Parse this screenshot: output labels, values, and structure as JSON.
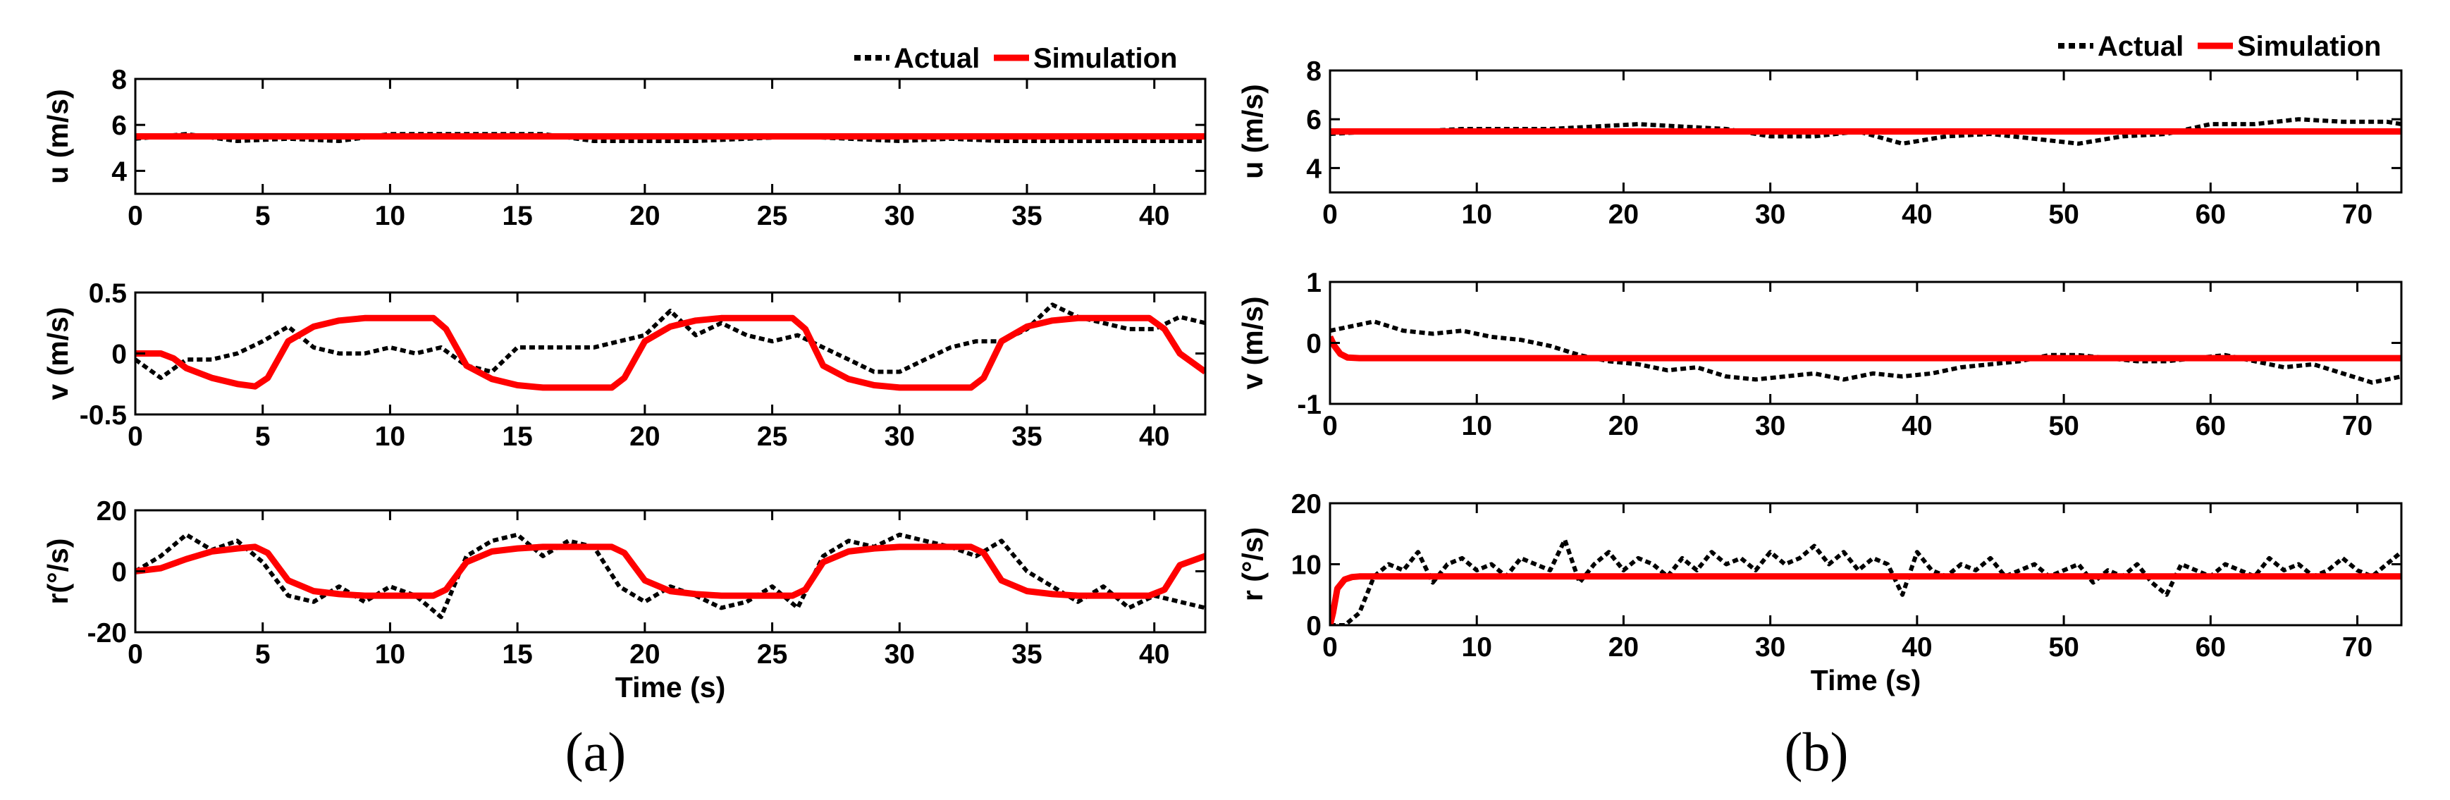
{
  "colors": {
    "actual": "#000000",
    "simulation": "#ff0000"
  },
  "legend": {
    "actual": "Actual",
    "simulation": "Simulation"
  },
  "panel_labels": [
    "(a)",
    "(b)"
  ],
  "chart_data": [
    {
      "type": "line",
      "panel": "a",
      "title": "",
      "xlabel": "",
      "ylabel": "u (m/s)",
      "xlim": [
        0,
        42
      ],
      "ylim": [
        3,
        8
      ],
      "xticks": [
        0,
        5,
        10,
        15,
        20,
        25,
        30,
        35,
        40
      ],
      "yticks": [
        4,
        6,
        8
      ],
      "series": [
        {
          "name": "Actual",
          "style": "dotted",
          "x": [
            0,
            2,
            4,
            6,
            8,
            10,
            12,
            14,
            16,
            18,
            20,
            22,
            24,
            26,
            28,
            30,
            32,
            34,
            36,
            38,
            40,
            42
          ],
          "y": [
            5.4,
            5.6,
            5.3,
            5.4,
            5.3,
            5.6,
            5.6,
            5.6,
            5.6,
            5.3,
            5.3,
            5.3,
            5.4,
            5.5,
            5.4,
            5.3,
            5.4,
            5.3,
            5.3,
            5.3,
            5.3,
            5.3
          ]
        },
        {
          "name": "Simulation",
          "style": "solid",
          "x": [
            0,
            42
          ],
          "y": [
            5.5,
            5.5
          ]
        }
      ]
    },
    {
      "type": "line",
      "panel": "a",
      "title": "",
      "xlabel": "",
      "ylabel": "v (m/s)",
      "xlim": [
        0,
        42
      ],
      "ylim": [
        -0.5,
        0.5
      ],
      "xticks": [
        0,
        5,
        10,
        15,
        20,
        25,
        30,
        35,
        40
      ],
      "yticks": [
        -0.5,
        0,
        0.5
      ],
      "series": [
        {
          "name": "Actual",
          "style": "dotted",
          "x": [
            0,
            1,
            2,
            3,
            4,
            5,
            6,
            7,
            8,
            9,
            10,
            11,
            12,
            13,
            14,
            15,
            16,
            17,
            18,
            19,
            20,
            21,
            22,
            23,
            24,
            25,
            26,
            27,
            28,
            29,
            30,
            31,
            32,
            33,
            34,
            35,
            36,
            37,
            38,
            39,
            40,
            41,
            42
          ],
          "y": [
            -0.05,
            -0.2,
            -0.05,
            -0.05,
            0.0,
            0.1,
            0.22,
            0.05,
            0.0,
            0.0,
            0.05,
            0.0,
            0.05,
            -0.1,
            -0.15,
            0.05,
            0.05,
            0.05,
            0.05,
            0.1,
            0.15,
            0.35,
            0.15,
            0.25,
            0.15,
            0.1,
            0.15,
            0.05,
            -0.05,
            -0.15,
            -0.15,
            -0.05,
            0.05,
            0.1,
            0.1,
            0.2,
            0.4,
            0.3,
            0.25,
            0.2,
            0.2,
            0.3,
            0.25
          ]
        },
        {
          "name": "Simulation",
          "style": "solid",
          "x": [
            0,
            1,
            1.5,
            2,
            3,
            4,
            4.7,
            5.2,
            6,
            7,
            8,
            9,
            10,
            11.7,
            12.2,
            13,
            14,
            15,
            16,
            18.7,
            19.2,
            20,
            21,
            22,
            23,
            24,
            25.8,
            26.3,
            27,
            28,
            29,
            30,
            32.8,
            33.3,
            34,
            35,
            36,
            37,
            39.8,
            40.4,
            41,
            42
          ],
          "y": [
            0,
            0,
            -0.04,
            -0.12,
            -0.2,
            -0.25,
            -0.27,
            -0.2,
            0.1,
            0.22,
            0.27,
            0.29,
            0.29,
            0.29,
            0.2,
            -0.1,
            -0.21,
            -0.26,
            -0.28,
            -0.28,
            -0.2,
            0.1,
            0.22,
            0.27,
            0.29,
            0.29,
            0.29,
            0.2,
            -0.1,
            -0.21,
            -0.26,
            -0.28,
            -0.28,
            -0.2,
            0.1,
            0.22,
            0.27,
            0.29,
            0.29,
            0.2,
            0.0,
            -0.15
          ]
        }
      ]
    },
    {
      "type": "line",
      "panel": "a",
      "title": "",
      "xlabel": "Time (s)",
      "ylabel": "r(°/s)",
      "xlim": [
        0,
        42
      ],
      "ylim": [
        -20,
        20
      ],
      "xticks": [
        0,
        5,
        10,
        15,
        20,
        25,
        30,
        35,
        40
      ],
      "yticks": [
        -20,
        0,
        20
      ],
      "series": [
        {
          "name": "Actual",
          "style": "dotted",
          "x": [
            0,
            1,
            2,
            3,
            4,
            5,
            6,
            7,
            8,
            9,
            10,
            11,
            12,
            13,
            14,
            15,
            16,
            17,
            18,
            19,
            20,
            21,
            22,
            23,
            24,
            25,
            26,
            27,
            28,
            29,
            30,
            31,
            32,
            33,
            34,
            35,
            36,
            37,
            38,
            39,
            40,
            41,
            42
          ],
          "y": [
            0,
            5,
            12,
            7,
            10,
            3,
            -8,
            -10,
            -5,
            -10,
            -5,
            -8,
            -15,
            5,
            10,
            12,
            5,
            10,
            8,
            -5,
            -10,
            -5,
            -8,
            -12,
            -10,
            -5,
            -12,
            5,
            10,
            8,
            12,
            10,
            8,
            5,
            10,
            0,
            -5,
            -10,
            -5,
            -12,
            -8,
            -10,
            -12
          ]
        },
        {
          "name": "Simulation",
          "style": "solid",
          "x": [
            0,
            1,
            2,
            3,
            4,
            4.7,
            5.2,
            6,
            7,
            8,
            9,
            10,
            11.7,
            12.2,
            13,
            14,
            15,
            16,
            18.7,
            19.2,
            20,
            21,
            22,
            23,
            24,
            25.8,
            26.3,
            27,
            28,
            29,
            30,
            32.8,
            33.3,
            34,
            35,
            36,
            37,
            39.8,
            40.4,
            41,
            42
          ],
          "y": [
            0,
            1,
            4,
            6.5,
            7.5,
            8,
            6,
            -3,
            -6.5,
            -7.5,
            -8,
            -8,
            -8,
            -6,
            3,
            6.5,
            7.5,
            8,
            8,
            6,
            -3,
            -6.5,
            -7.5,
            -8,
            -8,
            -8,
            -6,
            3,
            6.5,
            7.5,
            8,
            8,
            6,
            -3,
            -6.5,
            -7.5,
            -8,
            -8,
            -6,
            2,
            5
          ]
        }
      ]
    },
    {
      "type": "line",
      "panel": "b",
      "title": "",
      "xlabel": "",
      "ylabel": "u (m/s)",
      "xlim": [
        0,
        73
      ],
      "ylim": [
        3,
        8
      ],
      "xticks": [
        0,
        10,
        20,
        30,
        40,
        50,
        60,
        70
      ],
      "yticks": [
        4,
        6,
        8
      ],
      "series": [
        {
          "name": "Actual",
          "style": "dotted",
          "x": [
            0,
            3,
            6,
            9,
            12,
            15,
            18,
            21,
            24,
            27,
            30,
            33,
            36,
            39,
            42,
            45,
            48,
            51,
            54,
            57,
            60,
            63,
            66,
            69,
            72,
            73
          ],
          "y": [
            5.4,
            5.5,
            5.5,
            5.6,
            5.6,
            5.6,
            5.7,
            5.8,
            5.7,
            5.6,
            5.3,
            5.3,
            5.5,
            5.0,
            5.3,
            5.4,
            5.2,
            5.0,
            5.3,
            5.4,
            5.8,
            5.8,
            6.0,
            5.9,
            5.9,
            5.8
          ]
        },
        {
          "name": "Simulation",
          "style": "solid",
          "x": [
            0,
            73
          ],
          "y": [
            5.5,
            5.5
          ]
        }
      ]
    },
    {
      "type": "line",
      "panel": "b",
      "title": "",
      "xlabel": "",
      "ylabel": "v (m/s)",
      "xlim": [
        0,
        73
      ],
      "ylim": [
        -1,
        1
      ],
      "xticks": [
        0,
        10,
        20,
        30,
        40,
        50,
        60,
        70
      ],
      "yticks": [
        -1,
        0,
        1
      ],
      "series": [
        {
          "name": "Actual",
          "style": "dotted",
          "x": [
            0,
            1,
            3,
            5,
            7,
            9,
            11,
            13,
            15,
            17,
            19,
            21,
            23,
            25,
            27,
            29,
            31,
            33,
            35,
            37,
            39,
            41,
            43,
            45,
            47,
            49,
            51,
            53,
            55,
            57,
            59,
            61,
            63,
            65,
            67,
            69,
            71,
            73
          ],
          "y": [
            0.2,
            0.25,
            0.35,
            0.2,
            0.15,
            0.2,
            0.1,
            0.05,
            -0.05,
            -0.2,
            -0.3,
            -0.35,
            -0.45,
            -0.4,
            -0.55,
            -0.6,
            -0.55,
            -0.5,
            -0.6,
            -0.5,
            -0.55,
            -0.5,
            -0.4,
            -0.35,
            -0.3,
            -0.2,
            -0.2,
            -0.25,
            -0.3,
            -0.3,
            -0.25,
            -0.2,
            -0.3,
            -0.4,
            -0.35,
            -0.5,
            -0.65,
            -0.55
          ]
        },
        {
          "name": "Simulation",
          "style": "solid",
          "x": [
            0,
            0.3,
            0.7,
            1.2,
            2,
            73
          ],
          "y": [
            0.1,
            -0.05,
            -0.18,
            -0.24,
            -0.25,
            -0.25
          ]
        }
      ]
    },
    {
      "type": "line",
      "panel": "b",
      "title": "",
      "xlabel": "Time (s)",
      "ylabel": "r (°/s)",
      "xlim": [
        0,
        73
      ],
      "ylim": [
        0,
        20
      ],
      "xticks": [
        0,
        10,
        20,
        30,
        40,
        50,
        60,
        70
      ],
      "yticks": [
        0,
        10,
        20
      ],
      "series": [
        {
          "name": "Actual",
          "style": "dotted",
          "x": [
            0,
            1,
            2,
            3,
            4,
            5,
            6,
            7,
            8,
            9,
            10,
            11,
            12,
            13,
            14,
            15,
            16,
            17,
            18,
            19,
            20,
            21,
            22,
            23,
            24,
            25,
            26,
            27,
            28,
            29,
            30,
            31,
            32,
            33,
            34,
            35,
            36,
            37,
            38,
            39,
            40,
            41,
            42,
            43,
            44,
            45,
            46,
            47,
            48,
            49,
            50,
            51,
            52,
            53,
            54,
            55,
            56,
            57,
            58,
            59,
            60,
            61,
            62,
            63,
            64,
            65,
            66,
            67,
            68,
            69,
            70,
            71,
            72,
            73
          ],
          "y": [
            0,
            0,
            2,
            8,
            10,
            9,
            12,
            7,
            10,
            11,
            9,
            10,
            8,
            11,
            10,
            9,
            14,
            7,
            10,
            12,
            9,
            11,
            10,
            8,
            11,
            9,
            12,
            10,
            11,
            9,
            12,
            10,
            11,
            13,
            10,
            12,
            9,
            11,
            10,
            5,
            12,
            9,
            8,
            10,
            9,
            11,
            8,
            9,
            10,
            8,
            9,
            10,
            7,
            9,
            8,
            10,
            7,
            5,
            10,
            9,
            8,
            10,
            9,
            8,
            11,
            9,
            10,
            8,
            9,
            11,
            9,
            8,
            10,
            12
          ]
        },
        {
          "name": "Simulation",
          "style": "solid",
          "x": [
            0,
            0.2,
            0.5,
            1,
            1.5,
            2,
            73
          ],
          "y": [
            0,
            2,
            6,
            7.5,
            7.9,
            8,
            8
          ]
        }
      ]
    }
  ]
}
